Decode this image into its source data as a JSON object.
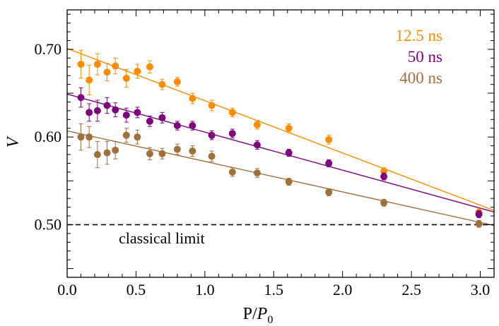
{
  "chart_data": {
    "type": "scatter",
    "title": "",
    "xlabel_main": "P/",
    "xlabel_sym": "P",
    "xlabel_sub": "0",
    "ylabel": "V",
    "xlim": [
      0.0,
      3.1
    ],
    "ylim": [
      0.44,
      0.745
    ],
    "x_ticks": [
      0.0,
      0.5,
      1.0,
      1.5,
      2.0,
      2.5,
      3.0
    ],
    "x_tick_labels": [
      "0.0",
      "0.5",
      "1.0",
      "1.5",
      "2.0",
      "2.5",
      "3.0"
    ],
    "y_ticks": [
      0.5,
      0.6,
      0.7
    ],
    "y_tick_labels": [
      "0.50",
      "0.60",
      "0.70"
    ],
    "grid": false,
    "legend_position": "top-right",
    "reference_line": {
      "y": 0.5,
      "style": "dashed",
      "label": "classical limit"
    },
    "series": [
      {
        "name": "12.5 ns",
        "color": "#ff8c00",
        "fit": {
          "intercept": 0.701,
          "slope": -0.0596
        },
        "points": [
          {
            "x": 0.1,
            "y": 0.683,
            "err": 0.016
          },
          {
            "x": 0.16,
            "y": 0.665,
            "err": 0.017
          },
          {
            "x": 0.22,
            "y": 0.683,
            "err": 0.012
          },
          {
            "x": 0.29,
            "y": 0.674,
            "err": 0.01
          },
          {
            "x": 0.35,
            "y": 0.681,
            "err": 0.009
          },
          {
            "x": 0.43,
            "y": 0.667,
            "err": 0.01
          },
          {
            "x": 0.51,
            "y": 0.675,
            "err": 0.008
          },
          {
            "x": 0.6,
            "y": 0.68,
            "err": 0.007
          },
          {
            "x": 0.69,
            "y": 0.66,
            "err": 0.006
          },
          {
            "x": 0.8,
            "y": 0.663,
            "err": 0.005
          },
          {
            "x": 0.91,
            "y": 0.644,
            "err": 0.006
          },
          {
            "x": 1.05,
            "y": 0.636,
            "err": 0.006
          },
          {
            "x": 1.2,
            "y": 0.628,
            "err": 0.005
          },
          {
            "x": 1.38,
            "y": 0.614,
            "err": 0.005
          },
          {
            "x": 1.61,
            "y": 0.61,
            "err": 0.005
          },
          {
            "x": 1.9,
            "y": 0.597,
            "err": 0.005
          },
          {
            "x": 2.3,
            "y": 0.561,
            "err": 0.004
          },
          {
            "x": 2.99,
            "y": 0.514,
            "err": 0.004
          }
        ]
      },
      {
        "name": "50 ns",
        "color": "#7f007f",
        "fit": {
          "intercept": 0.649,
          "slope": -0.0434
        },
        "points": [
          {
            "x": 0.1,
            "y": 0.645,
            "err": 0.011
          },
          {
            "x": 0.16,
            "y": 0.628,
            "err": 0.01
          },
          {
            "x": 0.22,
            "y": 0.63,
            "err": 0.012
          },
          {
            "x": 0.29,
            "y": 0.636,
            "err": 0.009
          },
          {
            "x": 0.35,
            "y": 0.631,
            "err": 0.008
          },
          {
            "x": 0.43,
            "y": 0.625,
            "err": 0.008
          },
          {
            "x": 0.51,
            "y": 0.628,
            "err": 0.006
          },
          {
            "x": 0.6,
            "y": 0.618,
            "err": 0.006
          },
          {
            "x": 0.69,
            "y": 0.622,
            "err": 0.006
          },
          {
            "x": 0.8,
            "y": 0.613,
            "err": 0.005
          },
          {
            "x": 0.91,
            "y": 0.613,
            "err": 0.005
          },
          {
            "x": 1.05,
            "y": 0.602,
            "err": 0.005
          },
          {
            "x": 1.2,
            "y": 0.604,
            "err": 0.005
          },
          {
            "x": 1.38,
            "y": 0.591,
            "err": 0.005
          },
          {
            "x": 1.61,
            "y": 0.582,
            "err": 0.004
          },
          {
            "x": 1.9,
            "y": 0.57,
            "err": 0.004
          },
          {
            "x": 2.3,
            "y": 0.555,
            "err": 0.004
          },
          {
            "x": 2.99,
            "y": 0.512,
            "err": 0.004
          }
        ]
      },
      {
        "name": "400 ns",
        "color": "#a0703a",
        "fit": {
          "intercept": 0.607,
          "slope": -0.0348
        },
        "points": [
          {
            "x": 0.1,
            "y": 0.6,
            "err": 0.015
          },
          {
            "x": 0.16,
            "y": 0.6,
            "err": 0.012
          },
          {
            "x": 0.22,
            "y": 0.58,
            "err": 0.015
          },
          {
            "x": 0.29,
            "y": 0.582,
            "err": 0.013
          },
          {
            "x": 0.35,
            "y": 0.585,
            "err": 0.01
          },
          {
            "x": 0.43,
            "y": 0.602,
            "err": 0.008
          },
          {
            "x": 0.51,
            "y": 0.6,
            "err": 0.008
          },
          {
            "x": 0.6,
            "y": 0.581,
            "err": 0.007
          },
          {
            "x": 0.69,
            "y": 0.581,
            "err": 0.006
          },
          {
            "x": 0.8,
            "y": 0.586,
            "err": 0.006
          },
          {
            "x": 0.91,
            "y": 0.584,
            "err": 0.006
          },
          {
            "x": 1.05,
            "y": 0.578,
            "err": 0.006
          },
          {
            "x": 1.2,
            "y": 0.56,
            "err": 0.005
          },
          {
            "x": 1.38,
            "y": 0.559,
            "err": 0.005
          },
          {
            "x": 1.61,
            "y": 0.549,
            "err": 0.004
          },
          {
            "x": 1.9,
            "y": 0.537,
            "err": 0.004
          },
          {
            "x": 2.3,
            "y": 0.525,
            "err": 0.004
          },
          {
            "x": 2.99,
            "y": 0.501,
            "err": 0.004
          }
        ]
      }
    ]
  }
}
